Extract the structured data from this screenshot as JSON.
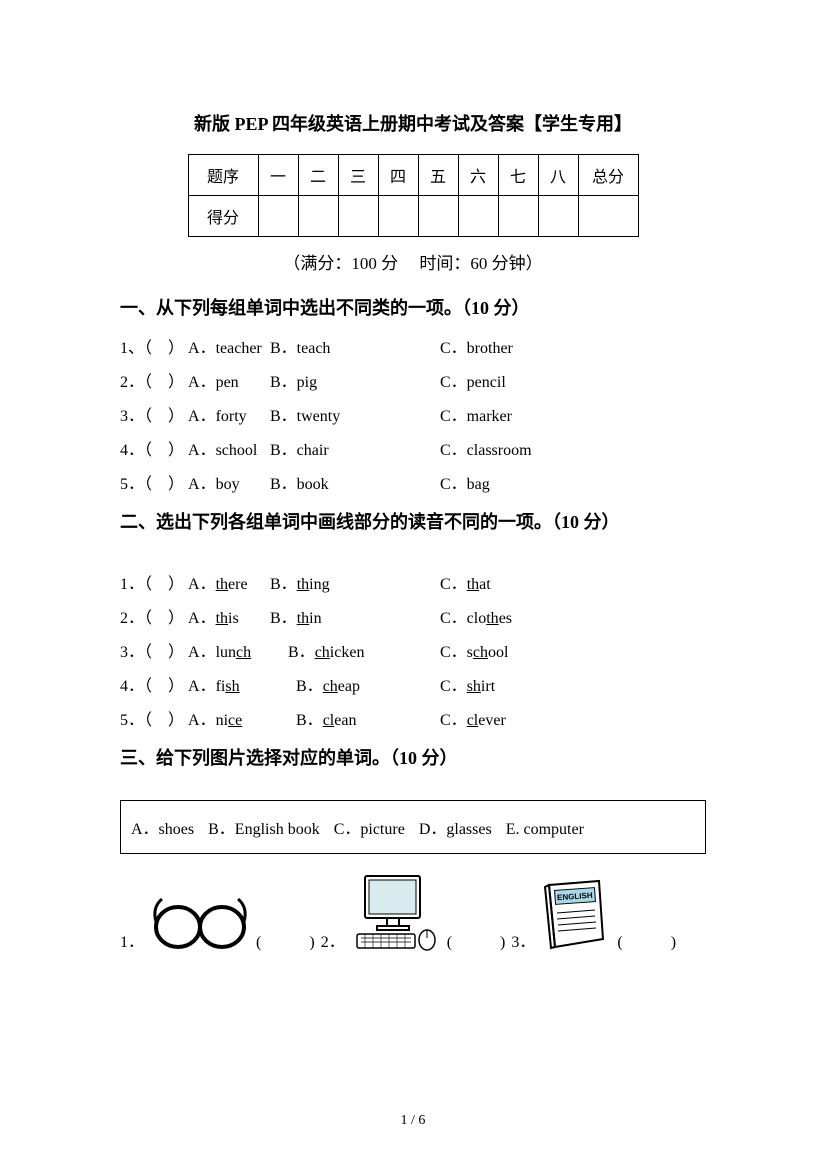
{
  "title": "新版 PEP 四年级英语上册期中考试及答案【学生专用】",
  "table": {
    "rows": [
      "题序",
      "得分"
    ],
    "cols": [
      "一",
      "二",
      "三",
      "四",
      "五",
      "六",
      "七",
      "八",
      "总分"
    ]
  },
  "subtitle": "（满分：100 分　 时间：60 分钟）",
  "sec1": {
    "head": "一、从下列每组单词中选出不同类的一项。（10 分）",
    "items": [
      {
        "n": "1、",
        "a": "A．teacher",
        "b": "B．teach",
        "c": "C．brother"
      },
      {
        "n": "2．",
        "a": "A．pen",
        "b": "B．pig",
        "c": "C．pencil"
      },
      {
        "n": "3．",
        "a": "A．forty",
        "b": "B．twenty",
        "c": "C．marker"
      },
      {
        "n": "4．",
        "a": "A．school",
        "b": "B．chair",
        "c": "C．classroom"
      },
      {
        "n": "5．",
        "a": "A．boy",
        "b": "B．book",
        "c": "C．bag"
      }
    ]
  },
  "sec2": {
    "head": "二、选出下列各组单词中画线部分的读音不同的一项。（10 分）",
    "items": [
      {
        "n": "1．",
        "a_pre": "A．",
        "a_u": "th",
        "a_post": "ere",
        "b_pre": "B．",
        "b_u": "th",
        "b_post": "ing",
        "c_pre": "C．",
        "c_u": "th",
        "c_post": "at",
        "shift": ""
      },
      {
        "n": "2．",
        "a_pre": "A．",
        "a_u": "th",
        "a_post": "is",
        "b_pre": "B．",
        "b_u": "th",
        "b_post": "in",
        "c_pre": "C．clo",
        "c_u": "th",
        "c_post": "es",
        "shift": ""
      },
      {
        "n": "3．",
        "a_pre": "A．lun",
        "a_u": "ch",
        "a_post": "",
        "b_pre": "B．",
        "b_u": "ch",
        "b_post": "icken",
        "c_pre": "C．s",
        "c_u": "ch",
        "c_post": "ool",
        "shift": "shift1"
      },
      {
        "n": "4．",
        "a_pre": "A．fi",
        "a_u": "sh",
        "a_post": "",
        "b_pre": "B．",
        "b_u": "ch",
        "b_post": "eap",
        "c_pre": "C．",
        "c_u": "sh",
        "c_post": "irt",
        "shift": "shift2"
      },
      {
        "n": "5．",
        "a_pre": "A．ni",
        "a_u": "ce",
        "a_post": "",
        "b_pre": "B．",
        "b_u": "cl",
        "b_post": "ean",
        "c_pre": "C．",
        "c_u": "cl",
        "c_post": "ever",
        "shift": "shift2"
      }
    ]
  },
  "sec3": {
    "head": "三、给下列图片选择对应的单词。（10 分）",
    "options": [
      "A．shoes",
      "B．English book",
      "C．picture",
      "D．glasses",
      "E. computer"
    ],
    "pics": [
      {
        "n": "1．",
        "blank": "(　　　)"
      },
      {
        "n": " 2．",
        "blank": "(　　　)"
      },
      {
        "n": " 3．",
        "blank": "(　　　)"
      }
    ],
    "english_label": "ENGLISH"
  },
  "paren": "（　）",
  "page": "1  /  6"
}
